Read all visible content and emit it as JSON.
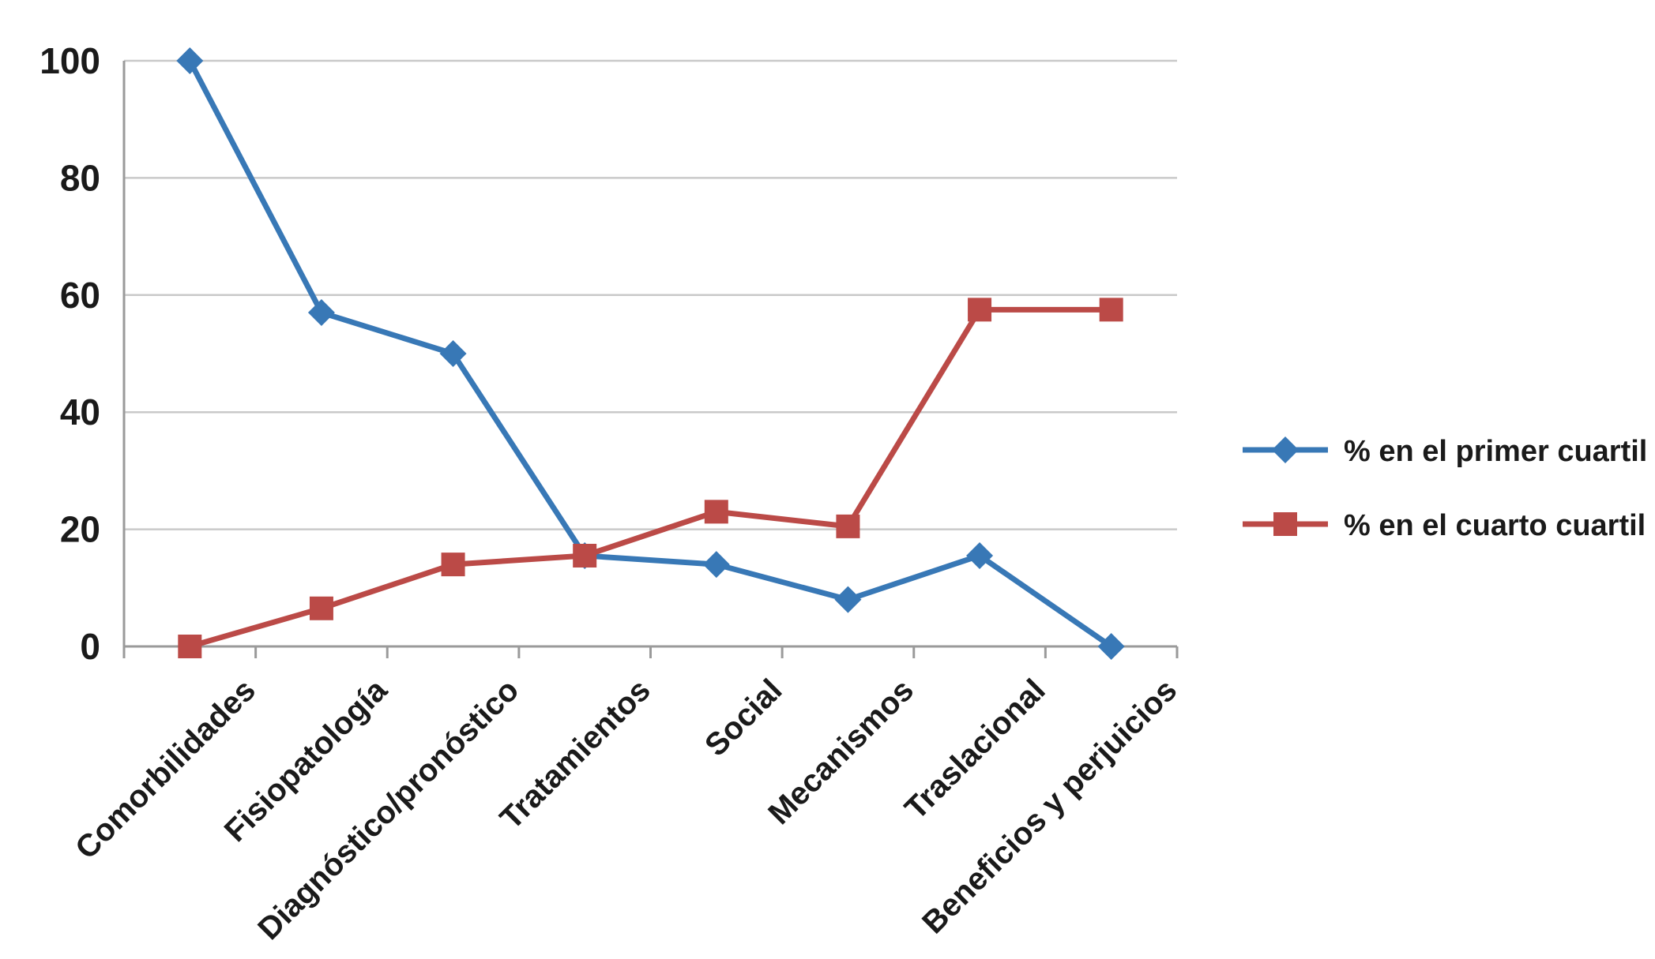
{
  "chart_data": {
    "type": "line",
    "title": "",
    "xlabel": "",
    "ylabel": "",
    "categories": [
      "Comorbilidades",
      "Fisiopatología",
      "Diagnóstico/pronóstico",
      "Tratamientos",
      "Social",
      "Mecanismos",
      "Traslacional",
      "Beneficios y perjuicios"
    ],
    "series": [
      {
        "name": "% en el primer cuartil",
        "marker": "diamond",
        "color": "#3878B6",
        "values": [
          100,
          57,
          50,
          15.5,
          14,
          8,
          15.5,
          0
        ]
      },
      {
        "name": "% en el cuarto cuartil",
        "marker": "square",
        "color": "#BB4A47",
        "values": [
          0,
          6.5,
          14,
          15.5,
          23,
          20.5,
          57.5,
          57.5
        ]
      }
    ],
    "ylim": [
      0,
      100
    ],
    "yticks": [
      0,
      20,
      40,
      60,
      80,
      100
    ],
    "grid": true,
    "legend_position": "right",
    "colors": {
      "grid": "#C9C9C9",
      "axis": "#9A9A9A",
      "text": "#1A1A1A",
      "background": "#FFFFFF"
    }
  }
}
